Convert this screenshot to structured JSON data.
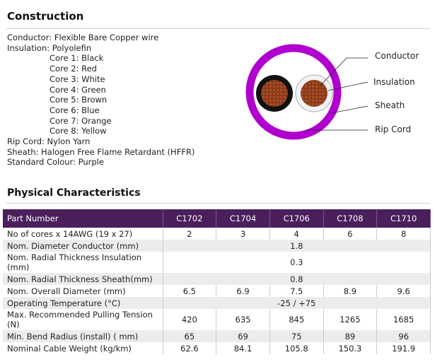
{
  "construction": {
    "title": "Construction",
    "conductor": "Conductor: Flexible Bare Copper wire",
    "insulation": "Insulation: Polyolefin",
    "cores": [
      "Core 1: Black",
      "Core 2: Red",
      "Core 3: White",
      "Core 4: Green",
      "Core 5: Brown",
      "Core 6: Blue",
      "Core 7: Orange",
      "Core 8: Yellow"
    ],
    "rip_cord": "Rip Cord: Nylon Yarn",
    "sheath": "Sheath: Halogen Free Flame Retardant (HFFR)",
    "colour": "Standard Colour: Purple"
  },
  "diagram": {
    "labels": {
      "conductor": "Conductor",
      "insulation": "Insulation",
      "sheath": "Sheath",
      "rip_cord": "Rip Cord"
    },
    "colors": {
      "sheath": "#b000d0",
      "copper": "#8b3a1a",
      "core_black": "#111111",
      "core_white": "#f2f2f2"
    }
  },
  "physical": {
    "title": "Physical Characteristics",
    "header": [
      "Part Number",
      "C1702",
      "C1704",
      "C1706",
      "C1708",
      "C1710"
    ],
    "rows": [
      {
        "label": "No of cores x 14AWG (19 x 27)",
        "values": [
          "2",
          "3",
          "4",
          "6",
          "8"
        ]
      },
      {
        "label": "Nom. Diameter Conductor (mm)",
        "span": "1.8"
      },
      {
        "label": "Nom. Radial Thickness Insulation (mm)",
        "span": "0.3",
        "tall": true
      },
      {
        "label": "Nom. Radial Thickness Sheath(mm)",
        "span": "0.8"
      },
      {
        "label": "Nom. Overall Diameter (mm)",
        "values": [
          "6.5",
          "6.9",
          "7.5",
          "8.9",
          "9.6"
        ]
      },
      {
        "label": "Operating Temperature (°C)",
        "span": "-25 / +75"
      },
      {
        "label": "Max. Recommended Pulling Tension (N)",
        "values": [
          "420",
          "635",
          "845",
          "1265",
          "1685"
        ],
        "tall": true
      },
      {
        "label": "Min. Bend Radius (install)   ( mm)",
        "values": [
          "65",
          "69",
          "75",
          "89",
          "96"
        ]
      },
      {
        "label": "Nominal Cable Weight (kg/km)",
        "values": [
          "62.6",
          "84.1",
          "105.8",
          "150.3",
          "191.9"
        ]
      }
    ]
  }
}
